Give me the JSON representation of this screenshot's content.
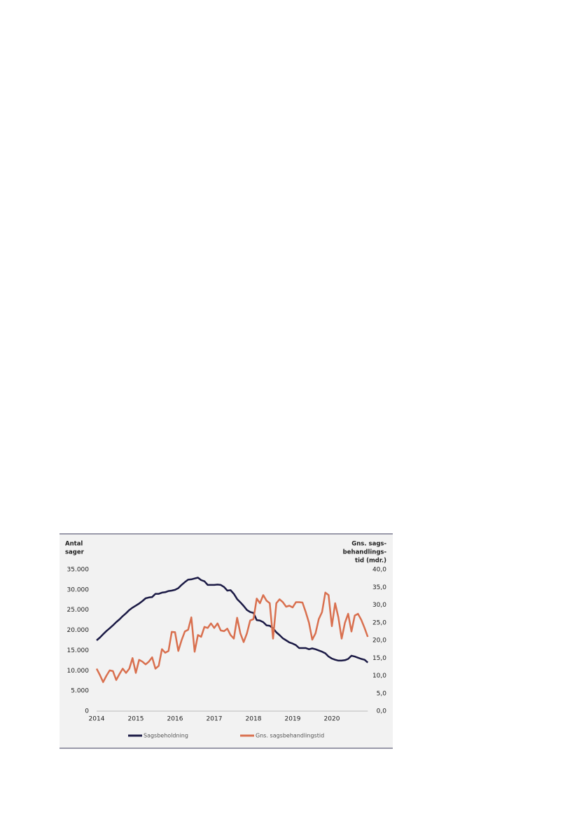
{
  "chart_data": {
    "type": "line",
    "y_label": [
      "Antal",
      "sager"
    ],
    "y2_label": [
      "Gns. sags-",
      "behandlings-",
      "tid (mdr.)"
    ],
    "categories": [
      "2014",
      null,
      null,
      null,
      null,
      null,
      null,
      null,
      null,
      null,
      null,
      null,
      "2015",
      null,
      null,
      null,
      null,
      null,
      null,
      null,
      null,
      null,
      null,
      null,
      "2016",
      null,
      null,
      null,
      null,
      null,
      null,
      null,
      null,
      null,
      null,
      null,
      "2017",
      null,
      null,
      null,
      null,
      null,
      null,
      null,
      null,
      null,
      null,
      null,
      "2018",
      null,
      null,
      null,
      null,
      null,
      null,
      null,
      null,
      null,
      null,
      null,
      "2019",
      null,
      null,
      null,
      null,
      null,
      null,
      null,
      null,
      null,
      null,
      null,
      "2020",
      null,
      null,
      null,
      null,
      null,
      null,
      null,
      null,
      null,
      null,
      null
    ],
    "ylim": [
      0,
      35000
    ],
    "yticks": [
      {
        "value": 0,
        "label": "0"
      },
      {
        "value": 5000,
        "label": "5.000"
      },
      {
        "value": 10000,
        "label": "10.000"
      },
      {
        "value": 15000,
        "label": "15.000"
      },
      {
        "value": 20000,
        "label": "20.000"
      },
      {
        "value": 25000,
        "label": "25.000"
      },
      {
        "value": 30000,
        "label": "30.000"
      },
      {
        "value": 35000,
        "label": "35.000"
      }
    ],
    "y2lim": [
      0,
      40
    ],
    "y2ticks": [
      {
        "value": 0,
        "label": "0,0"
      },
      {
        "value": 5,
        "label": "5,0"
      },
      {
        "value": 10,
        "label": "10,0"
      },
      {
        "value": 15,
        "label": "15,0"
      },
      {
        "value": 20,
        "label": "20,0"
      },
      {
        "value": 25,
        "label": "25,0"
      },
      {
        "value": 30,
        "label": "30,0"
      },
      {
        "value": 35,
        "label": "35,0"
      },
      {
        "value": 40,
        "label": "40,0"
      }
    ],
    "series": [
      {
        "name": "Sagsbeholdning",
        "color": "#1b1a45",
        "values": [
          17500,
          18200,
          19000,
          19800,
          20500,
          21200,
          22000,
          22700,
          23500,
          24200,
          25000,
          25600,
          26100,
          26600,
          27200,
          27900,
          28100,
          28200,
          29000,
          29000,
          29300,
          29400,
          29700,
          29800,
          30000,
          30400,
          31200,
          31900,
          32500,
          32600,
          32800,
          33000,
          32400,
          32100,
          31200,
          31200,
          31200,
          31300,
          31200,
          30700,
          29800,
          29900,
          29000,
          27700,
          26900,
          26000,
          25000,
          24500,
          24300,
          22500,
          22400,
          22000,
          21200,
          21100,
          20500,
          19500,
          18800,
          18000,
          17500,
          17000,
          16700,
          16300,
          15600,
          15600,
          15600,
          15300,
          15500,
          15300,
          15000,
          14700,
          14300,
          13500,
          13000,
          12700,
          12500,
          12500,
          12600,
          12900,
          13700,
          13500,
          13200,
          12900,
          12700,
          12000
        ]
      },
      {
        "name": "Gns. sagsbehandlingstid",
        "color": "#d9704f",
        "axis": "y2",
        "values": [
          12.0,
          10.2,
          8.2,
          10.0,
          11.5,
          11.3,
          8.8,
          10.5,
          12.0,
          10.8,
          12.0,
          15.0,
          10.8,
          14.5,
          14.0,
          13.2,
          14.0,
          15.2,
          12.0,
          12.8,
          17.5,
          16.5,
          17.0,
          22.4,
          22.3,
          17.0,
          20.0,
          22.5,
          23.0,
          26.5,
          16.8,
          21.5,
          21.0,
          23.8,
          23.5,
          24.8,
          23.5,
          24.8,
          22.8,
          22.6,
          23.3,
          21.5,
          20.5,
          26.4,
          22.0,
          19.5,
          22.0,
          25.6,
          26.0,
          31.8,
          30.5,
          32.8,
          31.2,
          30.5,
          20.5,
          30.5,
          31.6,
          30.8,
          29.5,
          29.8,
          29.3,
          30.8,
          30.8,
          30.7,
          28.0,
          25.0,
          20.2,
          22.0,
          26.0,
          28.0,
          33.5,
          32.8,
          24.0,
          30.5,
          26.5,
          20.5,
          25.0,
          27.5,
          22.5,
          27.0,
          27.5,
          25.8,
          23.5,
          21.0
        ]
      }
    ],
    "grid": false
  }
}
